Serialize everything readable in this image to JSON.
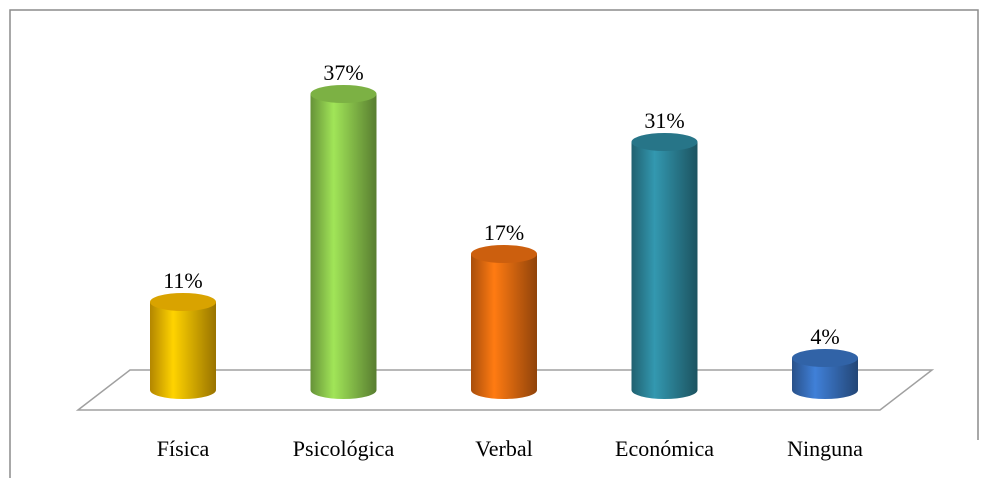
{
  "chart_data": {
    "type": "bar",
    "categories": [
      "Física",
      "Psicológica",
      "Verbal",
      "Económica",
      "Ninguna"
    ],
    "values": [
      11,
      37,
      17,
      31,
      4
    ],
    "value_labels": [
      "11%",
      "37%",
      "17%",
      "31%",
      "4%"
    ],
    "colors": [
      "#ffc000",
      "#92d050",
      "#f07010",
      "#2e8aa0",
      "#3a74c4"
    ]
  }
}
